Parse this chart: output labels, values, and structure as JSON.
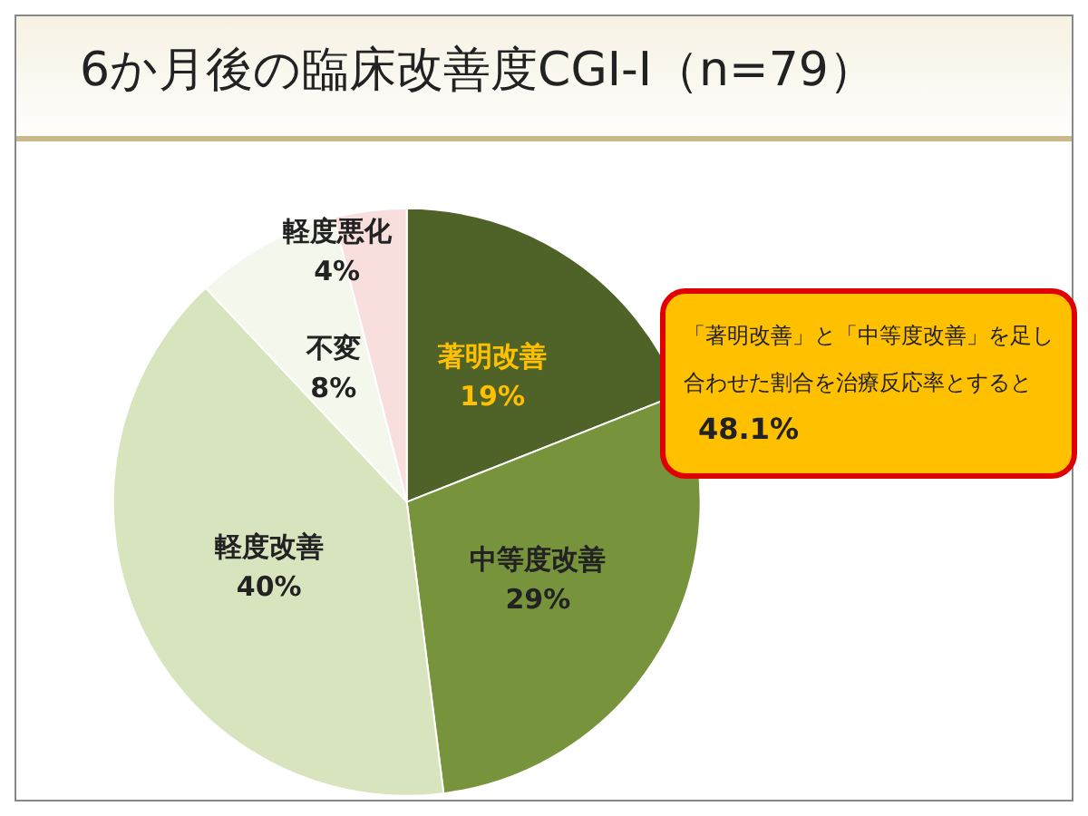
{
  "chart_data": {
    "type": "pie",
    "title": "6か月後の臨床改善度CGI-I（n=79）",
    "categories": [
      "著明改善",
      "中等度改善",
      "軽度改善",
      "不変",
      "軽度悪化"
    ],
    "values": [
      19,
      29,
      40,
      8,
      4
    ],
    "value_labels": [
      "19%",
      "29%",
      "40%",
      "8%",
      "4%"
    ],
    "colors": [
      "#4f6228",
      "#77933c",
      "#d7e4bd",
      "#f4f8ec",
      "#f9dede"
    ],
    "legend": false,
    "annotations": [
      "「著明改善」と「中等度改善」を足し合わせた割合を治療反応率とすると",
      "48.1%"
    ]
  }
}
